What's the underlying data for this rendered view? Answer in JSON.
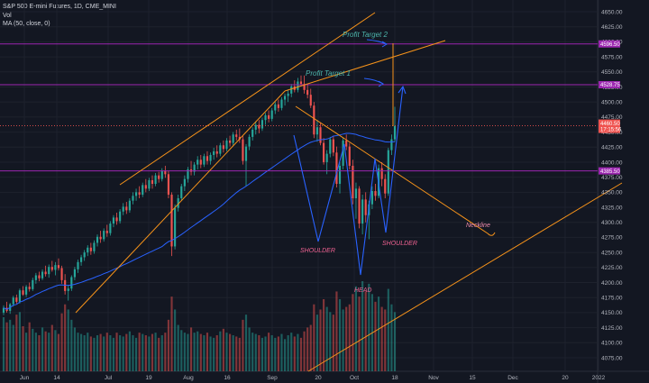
{
  "legend": {
    "symbol": "S&P 500 E-mini Futures, 1D, CME_MINI",
    "volume": "Vol",
    "ma": "MA (50, close, 0)"
  },
  "chart_data": {
    "type": "candlestick",
    "ylim": [
      4055,
      4660
    ],
    "y_ticks": [
      4650,
      4625,
      4600,
      4575,
      4550,
      4525,
      4500,
      4475,
      4450,
      4425,
      4400,
      4375,
      4350,
      4325,
      4300,
      4275,
      4250,
      4225,
      4200,
      4175,
      4150,
      4125,
      4100,
      4075
    ],
    "x_ticks": [
      "Jun",
      "14",
      "Jul",
      "19",
      "Aug",
      "16",
      "Sep",
      "20",
      "Oct",
      "18",
      "Nov",
      "15",
      "Dec",
      "20",
      "2022"
    ],
    "horizontal_levels": [
      {
        "value": 4596.5,
        "label": "4596.50",
        "color": "#9c27b0"
      },
      {
        "value": 4528.75,
        "label": "4528.75",
        "color": "#9c27b0"
      },
      {
        "value": 4385.5,
        "label": "4385.50",
        "color": "#9c27b0"
      }
    ],
    "last_price": {
      "value": 4460.5,
      "label": "4460.50",
      "countdown": "17:15:56",
      "color": "#ef5350"
    },
    "annotations": {
      "profit_target_1": "Profit Target 1",
      "profit_target_2": "Profit Target 2",
      "neckline": "Neckline",
      "shoulder_left": "SHOULDER",
      "shoulder_right": "SHOULDER",
      "head": "HEAD"
    },
    "colors": {
      "up": "#26a69a",
      "down": "#ef5350",
      "ma": "#2962ff",
      "trend": "#f7931a",
      "pattern": "#2962ff",
      "level": "#9c27b0"
    },
    "ohlc": [
      [
        4150,
        4162,
        4146,
        4158
      ],
      [
        4158,
        4168,
        4150,
        4153
      ],
      [
        4153,
        4166,
        4148,
        4164
      ],
      [
        4164,
        4178,
        4160,
        4175
      ],
      [
        4175,
        4180,
        4165,
        4168
      ],
      [
        4168,
        4190,
        4165,
        4187
      ],
      [
        4187,
        4194,
        4178,
        4180
      ],
      [
        4180,
        4196,
        4176,
        4193
      ],
      [
        4193,
        4200,
        4185,
        4189
      ],
      [
        4189,
        4208,
        4186,
        4204
      ],
      [
        4204,
        4216,
        4198,
        4212
      ],
      [
        4212,
        4218,
        4202,
        4207
      ],
      [
        4207,
        4222,
        4204,
        4218
      ],
      [
        4218,
        4228,
        4210,
        4214
      ],
      [
        4214,
        4230,
        4208,
        4226
      ],
      [
        4226,
        4236,
        4218,
        4221
      ],
      [
        4221,
        4234,
        4212,
        4229
      ],
      [
        4229,
        4240,
        4220,
        4224
      ],
      [
        4224,
        4228,
        4198,
        4204
      ],
      [
        4204,
        4214,
        4180,
        4186
      ],
      [
        4186,
        4196,
        4170,
        4190
      ],
      [
        4190,
        4212,
        4186,
        4209
      ],
      [
        4209,
        4226,
        4204,
        4222
      ],
      [
        4222,
        4238,
        4216,
        4234
      ],
      [
        4234,
        4246,
        4228,
        4242
      ],
      [
        4242,
        4254,
        4236,
        4250
      ],
      [
        4250,
        4262,
        4244,
        4258
      ],
      [
        4258,
        4266,
        4246,
        4252
      ],
      [
        4252,
        4270,
        4248,
        4266
      ],
      [
        4266,
        4280,
        4260,
        4276
      ],
      [
        4276,
        4286,
        4266,
        4272
      ],
      [
        4272,
        4290,
        4268,
        4286
      ],
      [
        4286,
        4296,
        4276,
        4282
      ],
      [
        4282,
        4302,
        4278,
        4298
      ],
      [
        4298,
        4312,
        4292,
        4308
      ],
      [
        4308,
        4316,
        4296,
        4302
      ],
      [
        4302,
        4322,
        4298,
        4318
      ],
      [
        4318,
        4332,
        4312,
        4326
      ],
      [
        4326,
        4334,
        4314,
        4320
      ],
      [
        4320,
        4340,
        4316,
        4336
      ],
      [
        4336,
        4350,
        4330,
        4344
      ],
      [
        4344,
        4356,
        4336,
        4350
      ],
      [
        4350,
        4360,
        4340,
        4346
      ],
      [
        4346,
        4366,
        4342,
        4362
      ],
      [
        4362,
        4372,
        4350,
        4356
      ],
      [
        4356,
        4374,
        4352,
        4370
      ],
      [
        4370,
        4378,
        4356,
        4364
      ],
      [
        4364,
        4382,
        4360,
        4378
      ],
      [
        4378,
        4384,
        4366,
        4372
      ],
      [
        4372,
        4390,
        4368,
        4386
      ],
      [
        4386,
        4394,
        4374,
        4380
      ],
      [
        4380,
        4386,
        4340,
        4346
      ],
      [
        4346,
        4350,
        4244,
        4260
      ],
      [
        4260,
        4330,
        4255,
        4324
      ],
      [
        4324,
        4346,
        4318,
        4340
      ],
      [
        4340,
        4364,
        4336,
        4360
      ],
      [
        4360,
        4378,
        4352,
        4372
      ],
      [
        4372,
        4392,
        4366,
        4388
      ],
      [
        4388,
        4402,
        4378,
        4384
      ],
      [
        4384,
        4400,
        4378,
        4396
      ],
      [
        4396,
        4410,
        4388,
        4404
      ],
      [
        4404,
        4412,
        4390,
        4396
      ],
      [
        4396,
        4414,
        4392,
        4410
      ],
      [
        4410,
        4418,
        4396,
        4402
      ],
      [
        4402,
        4416,
        4396,
        4412
      ],
      [
        4412,
        4424,
        4404,
        4418
      ],
      [
        4418,
        4428,
        4408,
        4414
      ],
      [
        4414,
        4432,
        4410,
        4428
      ],
      [
        4428,
        4436,
        4416,
        4422
      ],
      [
        4422,
        4440,
        4418,
        4436
      ],
      [
        4436,
        4444,
        4426,
        4432
      ],
      [
        4432,
        4450,
        4428,
        4446
      ],
      [
        4446,
        4454,
        4436,
        4442
      ],
      [
        4442,
        4456,
        4432,
        4438
      ],
      [
        4438,
        4444,
        4396,
        4402
      ],
      [
        4402,
        4430,
        4360,
        4426
      ],
      [
        4426,
        4446,
        4420,
        4442
      ],
      [
        4442,
        4458,
        4436,
        4454
      ],
      [
        4454,
        4468,
        4446,
        4462
      ],
      [
        4462,
        4470,
        4448,
        4456
      ],
      [
        4456,
        4474,
        4452,
        4470
      ],
      [
        4470,
        4482,
        4462,
        4478
      ],
      [
        4478,
        4486,
        4466,
        4472
      ],
      [
        4472,
        4490,
        4468,
        4486
      ],
      [
        4486,
        4500,
        4480,
        4496
      ],
      [
        4496,
        4504,
        4484,
        4490
      ],
      [
        4490,
        4508,
        4486,
        4504
      ],
      [
        4504,
        4514,
        4494,
        4510
      ],
      [
        4510,
        4520,
        4500,
        4514
      ],
      [
        4514,
        4530,
        4508,
        4526
      ],
      [
        4526,
        4536,
        4516,
        4520
      ],
      [
        4520,
        4540,
        4516,
        4534
      ],
      [
        4534,
        4544,
        4526,
        4530
      ],
      [
        4530,
        4544,
        4514,
        4520
      ],
      [
        4520,
        4528,
        4506,
        4512
      ],
      [
        4512,
        4522,
        4490,
        4494
      ],
      [
        4494,
        4500,
        4440,
        4446
      ],
      [
        4446,
        4470,
        4434,
        4458
      ],
      [
        4458,
        4466,
        4428,
        4432
      ],
      [
        4432,
        4440,
        4396,
        4400
      ],
      [
        4400,
        4420,
        4380,
        4414
      ],
      [
        4414,
        4442,
        4408,
        4438
      ],
      [
        4438,
        4444,
        4410,
        4416
      ],
      [
        4416,
        4426,
        4358,
        4364
      ],
      [
        4364,
        4400,
        4348,
        4394
      ],
      [
        4394,
        4440,
        4388,
        4436
      ],
      [
        4436,
        4446,
        4420,
        4426
      ],
      [
        4426,
        4432,
        4388,
        4394
      ],
      [
        4394,
        4404,
        4330,
        4340
      ],
      [
        4340,
        4366,
        4306,
        4356
      ],
      [
        4356,
        4360,
        4290,
        4298
      ],
      [
        4298,
        4346,
        4280,
        4338
      ],
      [
        4338,
        4350,
        4300,
        4312
      ],
      [
        4312,
        4336,
        4272,
        4330
      ],
      [
        4330,
        4360,
        4322,
        4352
      ],
      [
        4352,
        4364,
        4336,
        4344
      ],
      [
        4344,
        4396,
        4340,
        4390
      ],
      [
        4390,
        4400,
        4360,
        4372
      ],
      [
        4372,
        4380,
        4340,
        4348
      ],
      [
        4348,
        4424,
        4344,
        4420
      ],
      [
        4420,
        4446,
        4412,
        4438
      ],
      [
        4438,
        4492,
        4434,
        4460
      ]
    ],
    "volume": [
      42,
      38,
      40,
      36,
      44,
      46,
      35,
      30,
      38,
      33,
      30,
      28,
      34,
      31,
      30,
      36,
      32,
      29,
      45,
      52,
      48,
      40,
      34,
      30,
      29,
      28,
      30,
      27,
      26,
      28,
      29,
      27,
      30,
      28,
      26,
      30,
      28,
      27,
      29,
      31,
      28,
      26,
      30,
      29,
      28,
      27,
      29,
      30,
      26,
      28,
      30,
      40,
      58,
      48,
      36,
      32,
      30,
      29,
      34,
      30,
      31,
      29,
      28,
      30,
      27,
      26,
      28,
      31,
      33,
      30,
      29,
      28,
      27,
      26,
      40,
      44,
      34,
      30,
      29,
      28,
      26,
      27,
      30,
      28,
      26,
      27,
      29,
      25,
      28,
      30,
      27,
      29,
      26,
      31,
      34,
      36,
      52,
      44,
      48,
      56,
      50,
      46,
      44,
      62,
      56,
      48,
      50,
      52,
      60,
      66,
      58,
      70,
      62,
      68,
      60,
      54,
      58,
      50,
      48,
      64,
      52,
      46
    ]
  }
}
